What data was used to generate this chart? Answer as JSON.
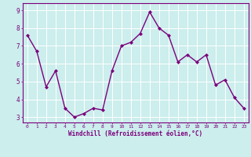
{
  "x": [
    0,
    1,
    2,
    3,
    4,
    5,
    6,
    7,
    8,
    9,
    10,
    11,
    12,
    13,
    14,
    15,
    16,
    17,
    18,
    19,
    20,
    21,
    22,
    23
  ],
  "y": [
    7.6,
    6.7,
    4.7,
    5.6,
    3.5,
    3.0,
    3.2,
    3.5,
    3.4,
    5.6,
    7.0,
    7.2,
    7.7,
    8.9,
    8.0,
    7.6,
    6.1,
    6.5,
    6.1,
    6.5,
    4.8,
    5.1,
    4.1,
    3.5
  ],
  "line_color": "#7b007b",
  "marker": "D",
  "marker_size": 2.0,
  "linewidth": 1.0,
  "bg_color": "#cceeed",
  "grid_color": "#ffffff",
  "xlabel": "Windchill (Refroidissement éolien,°C)",
  "xlabel_color": "#7b007b",
  "tick_color": "#7b007b",
  "ylabel_ticks": [
    3,
    4,
    5,
    6,
    7,
    8,
    9
  ],
  "xtick_fontsize": 4.5,
  "ytick_fontsize": 5.5,
  "xlabel_fontsize": 5.5,
  "xlim": [
    -0.5,
    23.5
  ],
  "ylim": [
    2.7,
    9.4
  ]
}
